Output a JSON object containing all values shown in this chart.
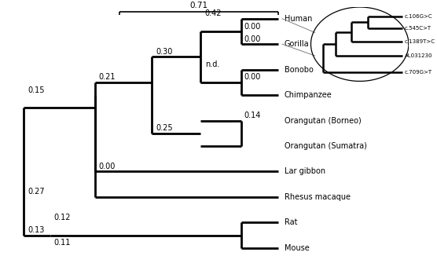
{
  "lw": 2.0,
  "taxa": [
    "Human",
    "Gorilla",
    "Bonobo",
    "Chimpanzee",
    "Orangutan (Borneo)",
    "Orangutan (Sumatra)",
    "Lar gibbon",
    "Rhesus macaque",
    "Rat",
    "Mouse"
  ],
  "inset_labels": [
    "c.106G>C",
    "c.545C>T",
    "c.1389T>C",
    "AL031230",
    "c.709G>T"
  ]
}
